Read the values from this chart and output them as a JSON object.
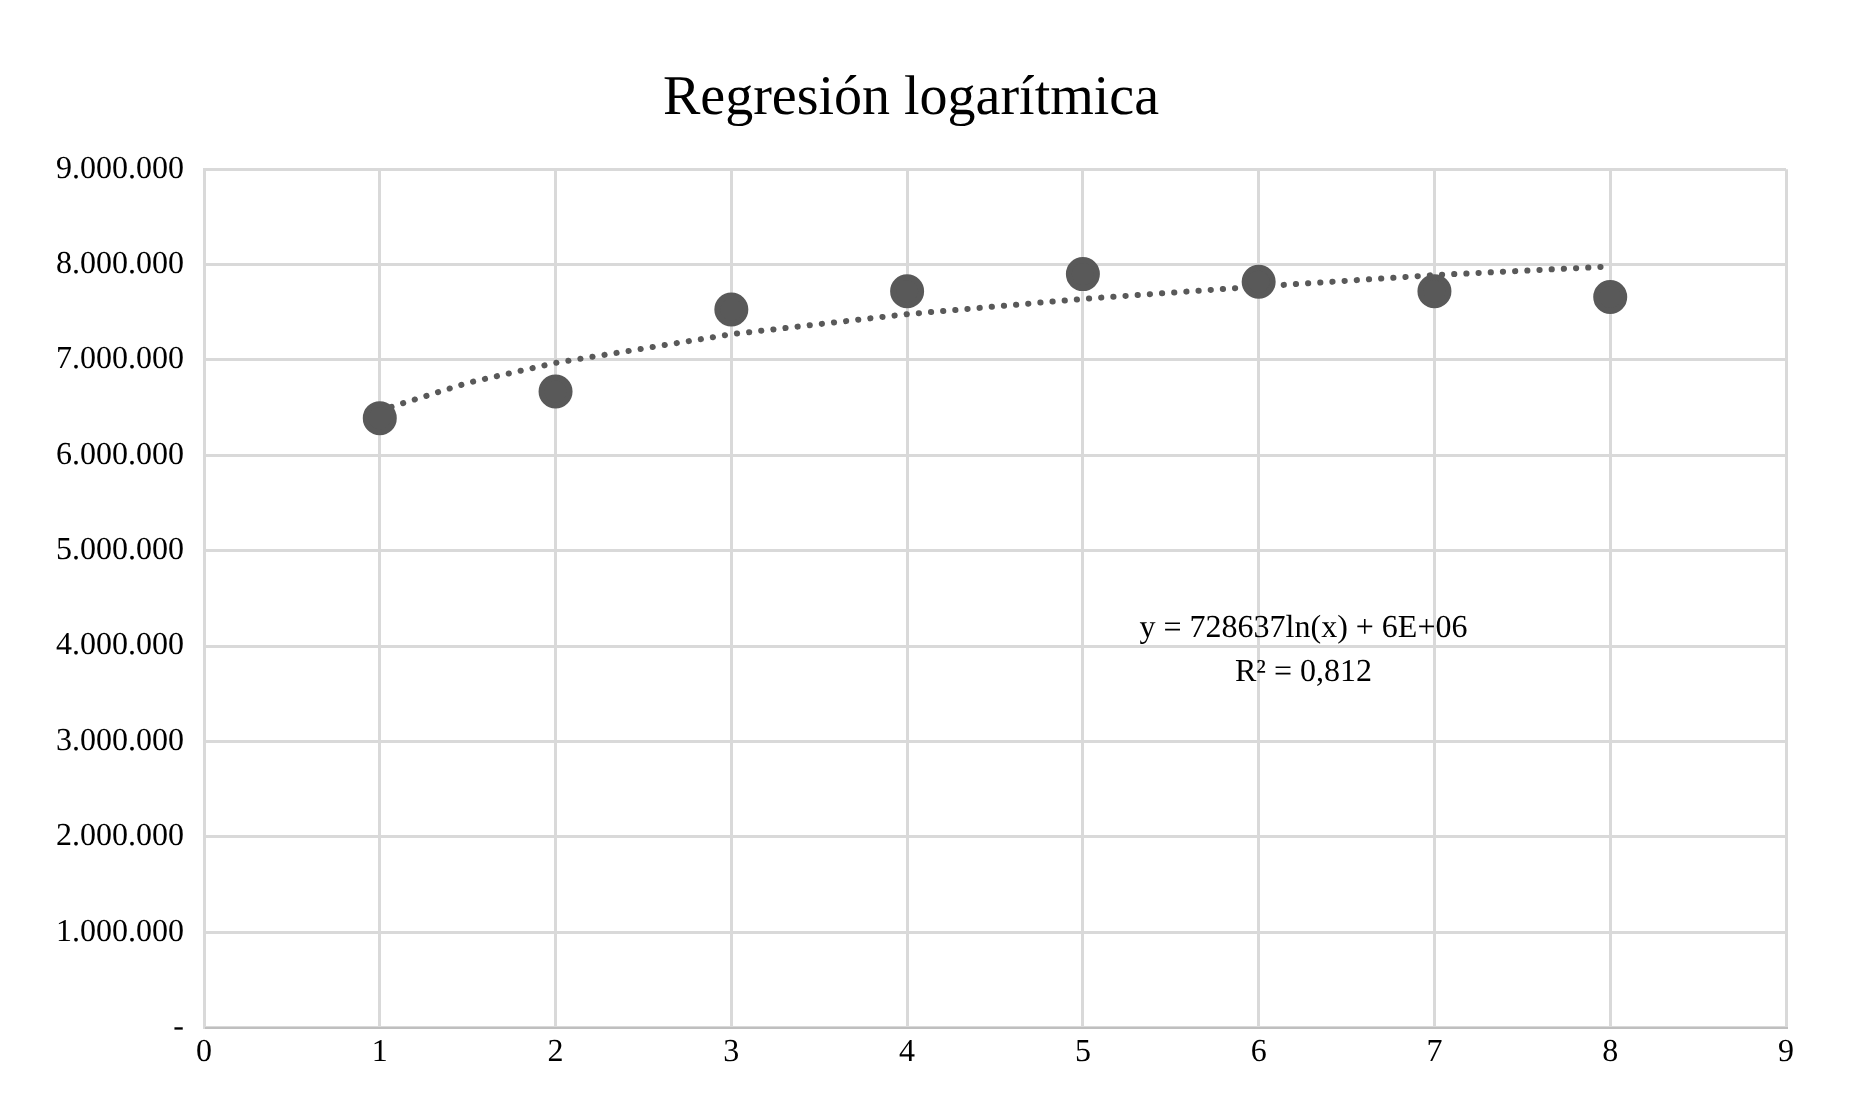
{
  "chart_data": {
    "type": "scatter",
    "title": "Regresión logarítmica",
    "series": [
      {
        "color": "#595959",
        "marker": "circle",
        "x": [
          1,
          2,
          3,
          4,
          5,
          6,
          7,
          8
        ],
        "values": [
          6390000,
          6670000,
          7530000,
          7720000,
          7900000,
          7820000,
          7720000,
          7660000
        ]
      },
      {
        "type": "line",
        "color": "#595959",
        "marker": "none",
        "line_style": "dotted",
        "x": [
          1,
          1.5,
          2,
          3,
          4,
          5,
          6,
          7,
          8
        ],
        "values": [
          6470000,
          6760000,
          6970000,
          7270000,
          7480000,
          7640000,
          7770000,
          7890000,
          7980000
        ]
      }
    ],
    "xlim": [
      0,
      9
    ],
    "xticks": [
      0,
      1,
      2,
      3,
      4,
      5,
      6,
      7,
      8,
      9
    ],
    "ylim": [
      0,
      9000000
    ],
    "yticks": [
      {
        "value": 0,
        "label": "-"
      },
      {
        "value": 1000000,
        "label": "1.000.000"
      },
      {
        "value": 2000000,
        "label": "2.000.000"
      },
      {
        "value": 3000000,
        "label": "3.000.000"
      },
      {
        "value": 4000000,
        "label": "4.000.000"
      },
      {
        "value": 5000000,
        "label": "5.000.000"
      },
      {
        "value": 6000000,
        "label": "6.000.000"
      },
      {
        "value": 7000000,
        "label": "7.000.000"
      },
      {
        "value": 8000000,
        "label": "8.000.000"
      },
      {
        "value": 9000000,
        "label": "9.000.000"
      }
    ],
    "grid": true,
    "legend": false,
    "annotations": [
      "y = 728637ln(x) + 6E+06",
      "R² = 0,812"
    ]
  }
}
